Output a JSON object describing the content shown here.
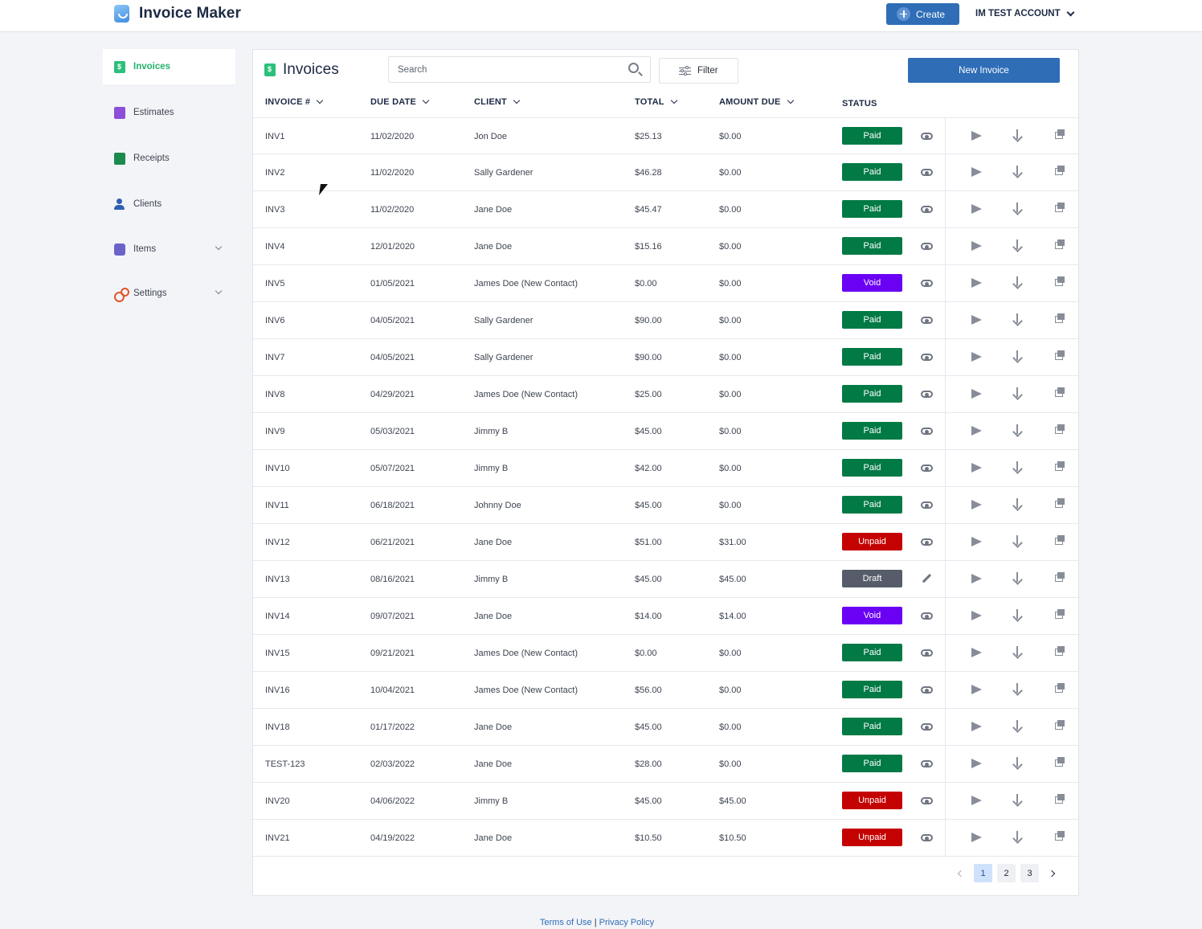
{
  "app": {
    "name": "Invoice Maker"
  },
  "header": {
    "create_label": "Create",
    "account_label": "IM TEST ACCOUNT"
  },
  "sidebar": {
    "items": [
      {
        "label": "Invoices",
        "active": true
      },
      {
        "label": "Estimates"
      },
      {
        "label": "Receipts"
      },
      {
        "label": "Clients"
      },
      {
        "label": "Items",
        "expandable": true
      },
      {
        "label": "Settings",
        "expandable": true
      }
    ]
  },
  "main": {
    "title": "Invoices",
    "search_placeholder": "Search",
    "filter_label": "Filter",
    "new_invoice_label": "New Invoice",
    "columns": [
      "INVOICE #",
      "DUE DATE",
      "CLIENT",
      "TOTAL",
      "AMOUNT DUE",
      "STATUS"
    ],
    "status_colors": {
      "Paid": "#017a45",
      "Void": "#6a00f4",
      "Unpaid": "#c40202",
      "Draft": "#575c6a"
    },
    "rows": [
      {
        "invoice": "INV1",
        "due": "11/02/2020",
        "client": "Jon Doe",
        "total": "$25.13",
        "due_amount": "$0.00",
        "status": "Paid"
      },
      {
        "invoice": "INV2",
        "due": "11/02/2020",
        "client": "Sally Gardener",
        "total": "$46.28",
        "due_amount": "$0.00",
        "status": "Paid"
      },
      {
        "invoice": "INV3",
        "due": "11/02/2020",
        "client": "Jane Doe",
        "total": "$45.47",
        "due_amount": "$0.00",
        "status": "Paid"
      },
      {
        "invoice": "INV4",
        "due": "12/01/2020",
        "client": "Jane Doe",
        "total": "$15.16",
        "due_amount": "$0.00",
        "status": "Paid"
      },
      {
        "invoice": "INV5",
        "due": "01/05/2021",
        "client": "James Doe (New Contact)",
        "total": "$0.00",
        "due_amount": "$0.00",
        "status": "Void"
      },
      {
        "invoice": "INV6",
        "due": "04/05/2021",
        "client": "Sally Gardener",
        "total": "$90.00",
        "due_amount": "$0.00",
        "status": "Paid"
      },
      {
        "invoice": "INV7",
        "due": "04/05/2021",
        "client": "Sally Gardener",
        "total": "$90.00",
        "due_amount": "$0.00",
        "status": "Paid"
      },
      {
        "invoice": "INV8",
        "due": "04/29/2021",
        "client": "James Doe (New Contact)",
        "total": "$25.00",
        "due_amount": "$0.00",
        "status": "Paid"
      },
      {
        "invoice": "INV9",
        "due": "05/03/2021",
        "client": "Jimmy B",
        "total": "$45.00",
        "due_amount": "$0.00",
        "status": "Paid"
      },
      {
        "invoice": "INV10",
        "due": "05/07/2021",
        "client": "Jimmy B",
        "total": "$42.00",
        "due_amount": "$0.00",
        "status": "Paid"
      },
      {
        "invoice": "INV11",
        "due": "06/18/2021",
        "client": "Johnny Doe",
        "total": "$45.00",
        "due_amount": "$0.00",
        "status": "Paid"
      },
      {
        "invoice": "INV12",
        "due": "06/21/2021",
        "client": "Jane Doe",
        "total": "$51.00",
        "due_amount": "$31.00",
        "status": "Unpaid"
      },
      {
        "invoice": "INV13",
        "due": "08/16/2021",
        "client": "Jimmy B",
        "total": "$45.00",
        "due_amount": "$45.00",
        "status": "Draft"
      },
      {
        "invoice": "INV14",
        "due": "09/07/2021",
        "client": "Jane Doe",
        "total": "$14.00",
        "due_amount": "$14.00",
        "status": "Void"
      },
      {
        "invoice": "INV15",
        "due": "09/21/2021",
        "client": "James Doe (New Contact)",
        "total": "$0.00",
        "due_amount": "$0.00",
        "status": "Paid"
      },
      {
        "invoice": "INV16",
        "due": "10/04/2021",
        "client": "James Doe (New Contact)",
        "total": "$56.00",
        "due_amount": "$0.00",
        "status": "Paid"
      },
      {
        "invoice": "INV18",
        "due": "01/17/2022",
        "client": "Jane Doe",
        "total": "$45.00",
        "due_amount": "$0.00",
        "status": "Paid"
      },
      {
        "invoice": "TEST-123",
        "due": "02/03/2022",
        "client": "Jane Doe",
        "total": "$28.00",
        "due_amount": "$0.00",
        "status": "Paid"
      },
      {
        "invoice": "INV20",
        "due": "04/06/2022",
        "client": "Jimmy B",
        "total": "$45.00",
        "due_amount": "$45.00",
        "status": "Unpaid"
      },
      {
        "invoice": "INV21",
        "due": "04/19/2022",
        "client": "Jane Doe",
        "total": "$10.50",
        "due_amount": "$10.50",
        "status": "Unpaid"
      }
    ],
    "pagination": {
      "pages": [
        "1",
        "2",
        "3"
      ],
      "current": "1"
    }
  },
  "footer": {
    "terms": "Terms of Use",
    "separator": "|",
    "privacy": "Privacy Policy"
  }
}
